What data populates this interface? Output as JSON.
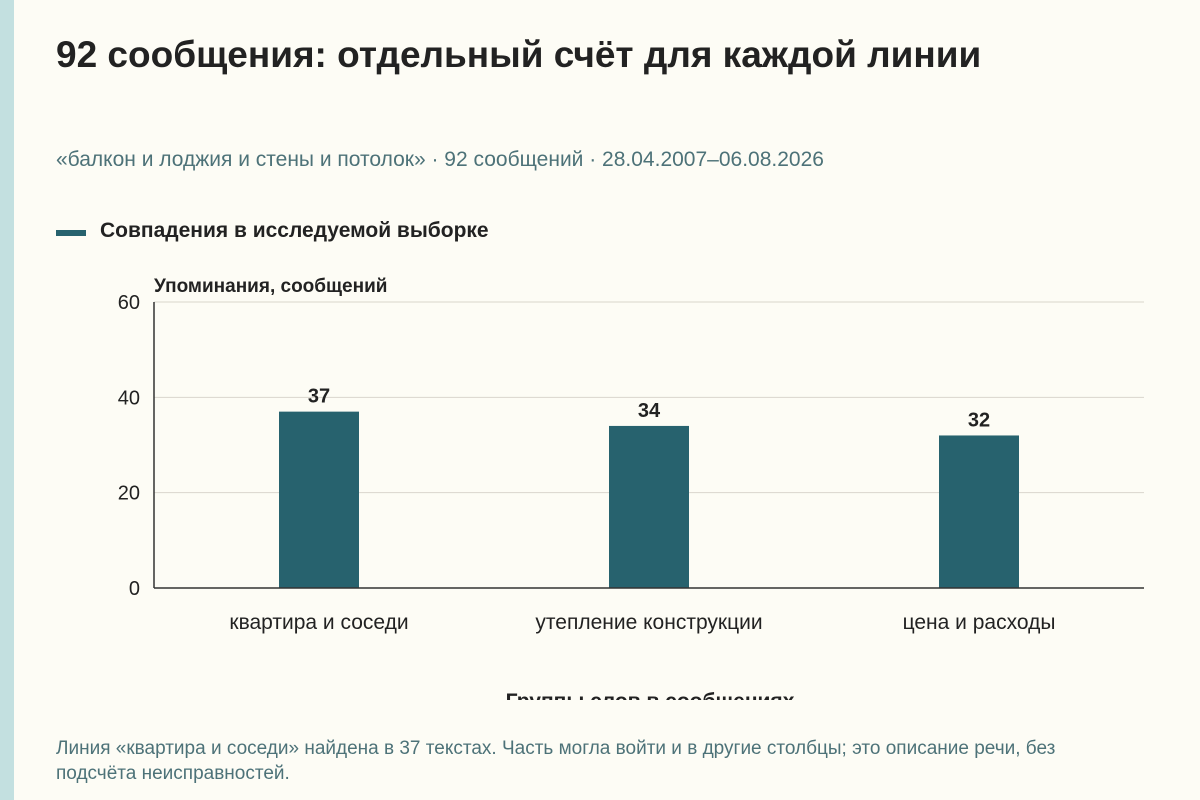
{
  "header": {
    "title": "92 сообщения: отдельный счёт для каждой линии",
    "subtitle": "«балкон и лоджия и стены и потолок» · 92 сообщений · 28.04.2007–06.08.2026"
  },
  "legend": {
    "label": "Совпадения в исследуемой выборке",
    "position": "top-left"
  },
  "colors": {
    "bar": "#27626e",
    "grid": "#d9d6cc",
    "axis": "#333333",
    "accent_stripe": "#c3e0e0"
  },
  "chart_data": {
    "type": "bar",
    "title": "92 сообщения: отдельный счёт для каждой линии",
    "subtitle": "«балкон и лоджия и стены и потолок» · 92 сообщений · 28.04.2007–06.08.2026",
    "categories": [
      "квартира и соседи",
      "утепление конструкции",
      "цена и расходы"
    ],
    "series": [
      {
        "name": "Совпадения в исследуемой выборке",
        "values": [
          37,
          34,
          32
        ]
      }
    ],
    "data_labels": [
      "37",
      "34",
      "32"
    ],
    "xlabel": "Группы слов в сообщениях",
    "ylabel": "Упоминания, сообщений",
    "ylim": [
      0,
      60
    ],
    "yticks": [
      0,
      20,
      40,
      60
    ],
    "ytick_labels": [
      "0",
      "20",
      "40",
      "60"
    ],
    "grid": true,
    "legend_position": "top-left"
  },
  "footer": {
    "note": "Линия «квартира и соседи» найдена в 37 текстах. Часть могла войти и в другие столбцы; это описание речи, без подсчёта неисправностей."
  }
}
